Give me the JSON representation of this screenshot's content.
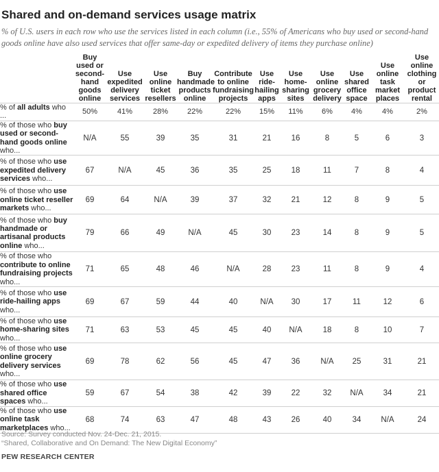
{
  "title": "Shared and on-demand services usage matrix",
  "subtitle": "% of U.S. users in each row who use the services listed in each column (i.e., 55% of Americans who buy used or second-hand goods online have also used services that offer same-day or expedited delivery of items they purchase online)",
  "columns": [
    "Buy used or second-hand goods online",
    "Use expedited delivery services",
    "Use online ticket resellers",
    "Buy handmade products online",
    "Contribute to online fundraising projects",
    "Use ride-hailing apps",
    "Use home-sharing sites",
    "Use online grocery delivery",
    "Use shared office space",
    "Use online task market places",
    "Use online clothing or product rental"
  ],
  "totals": {
    "label_pre": "% of ",
    "label_bold": "all adults",
    "label_post": " who ...",
    "values": [
      "50%",
      "41%",
      "28%",
      "22%",
      "22%",
      "15%",
      "11%",
      "6%",
      "4%",
      "4%",
      "2%"
    ]
  },
  "rows": [
    {
      "pre": "% of those who ",
      "bold": "buy used or second-hand goods online",
      "post": " who...",
      "values": [
        "N/A",
        "55",
        "39",
        "35",
        "31",
        "21",
        "16",
        "8",
        "5",
        "6",
        "3"
      ]
    },
    {
      "pre": "% of those who ",
      "bold": "use expedited delivery services",
      "post": " who...",
      "values": [
        "67",
        "N/A",
        "45",
        "36",
        "35",
        "25",
        "18",
        "11",
        "7",
        "8",
        "4"
      ]
    },
    {
      "pre": "% of those who ",
      "bold": "use online ticket reseller markets",
      "post": " who...",
      "values": [
        "69",
        "64",
        "N/A",
        "39",
        "37",
        "32",
        "21",
        "12",
        "8",
        "9",
        "5"
      ]
    },
    {
      "pre": "% of those who ",
      "bold": "buy handmade or artisanal products online",
      "post": " who...",
      "values": [
        "79",
        "66",
        "49",
        "N/A",
        "45",
        "30",
        "23",
        "14",
        "8",
        "9",
        "5"
      ]
    },
    {
      "pre": "% of those who ",
      "bold": "contribute to online fundraising projects",
      "post": " who...",
      "values": [
        "71",
        "65",
        "48",
        "46",
        "N/A",
        "28",
        "23",
        "11",
        "8",
        "9",
        "4"
      ]
    },
    {
      "pre": "% of those who ",
      "bold": "use ride-hailing apps",
      "post": " who...",
      "values": [
        "69",
        "67",
        "59",
        "44",
        "40",
        "N/A",
        "30",
        "17",
        "11",
        "12",
        "6"
      ]
    },
    {
      "pre": "% of those who ",
      "bold": "use home-sharing sites",
      "post": " who...",
      "values": [
        "71",
        "63",
        "53",
        "45",
        "45",
        "40",
        "N/A",
        "18",
        "8",
        "10",
        "7"
      ]
    },
    {
      "pre": "% of those who ",
      "bold": "use online grocery delivery services",
      "post": " who...",
      "values": [
        "69",
        "78",
        "62",
        "56",
        "45",
        "47",
        "36",
        "N/A",
        "25",
        "31",
        "21"
      ]
    },
    {
      "pre": "% of those who ",
      "bold": "use shared office spaces",
      "post": " who...",
      "values": [
        "59",
        "67",
        "54",
        "38",
        "42",
        "39",
        "22",
        "32",
        "N/A",
        "34",
        "21"
      ]
    },
    {
      "pre": "% of those who ",
      "bold": "use online task marketplaces",
      "post": " who...",
      "values": [
        "68",
        "74",
        "63",
        "47",
        "48",
        "43",
        "26",
        "40",
        "34",
        "N/A",
        "24"
      ]
    }
  ],
  "source_line1": "Source: Survey conducted Nov. 24-Dec. 21, 2015.",
  "source_line2": "“Shared, Collaborative and On Demand: The New Digital Economy”",
  "footer": "PEW RESEARCH CENTER"
}
